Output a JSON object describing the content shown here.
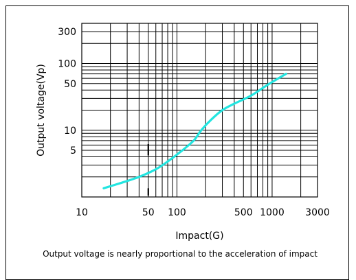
{
  "chart_data": {
    "type": "line",
    "xlabel": "Impact(G)",
    "ylabel": "Output voltage(Vp)",
    "caption": "Output voltage is nearly proportional to the acceleration of impact",
    "x_scale": "log",
    "y_scale": "log",
    "xlim": [
      10,
      3000
    ],
    "ylim": [
      1,
      400
    ],
    "x_ticks": [
      {
        "value": 10,
        "label": "10"
      },
      {
        "value": 50,
        "label": "50"
      },
      {
        "value": 100,
        "label": "100"
      },
      {
        "value": 500,
        "label": "500"
      },
      {
        "value": 1000,
        "label": "1000"
      },
      {
        "value": 3000,
        "label": "3000"
      }
    ],
    "y_ticks": [
      {
        "value": 5,
        "label": "5"
      },
      {
        "value": 10,
        "label": "10"
      },
      {
        "value": 50,
        "label": "50"
      },
      {
        "value": 100,
        "label": "100"
      },
      {
        "value": 300,
        "label": "300"
      }
    ],
    "grid": true,
    "series": [
      {
        "color": "#22e5e0",
        "x": [
          17,
          25,
          40,
          60,
          80,
          110,
          150,
          180,
          230,
          300,
          400,
          600,
          900,
          1400
        ],
        "y": [
          1.35,
          1.6,
          2.0,
          2.6,
          3.4,
          4.8,
          7.0,
          10.0,
          14.5,
          20.0,
          25.0,
          33.0,
          48.0,
          70.0
        ]
      }
    ]
  }
}
